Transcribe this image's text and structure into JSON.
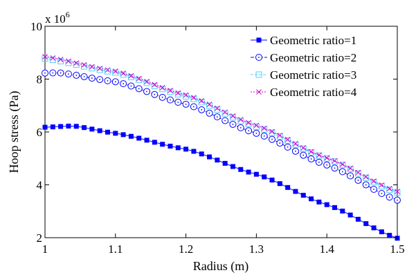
{
  "chart_data": {
    "type": "line",
    "title": "",
    "xlabel": "Radius (m)",
    "ylabel": "Hoop stress (Pa)",
    "y_multiplier_label": "x 10",
    "y_multiplier_exp": "6",
    "xlim": [
      1.0,
      1.5
    ],
    "ylim": [
      2,
      10
    ],
    "x_ticks": [
      1,
      1.1,
      1.2,
      1.3,
      1.4,
      1.5
    ],
    "x_tick_labels": [
      "1",
      "1.1",
      "1.2",
      "1.3",
      "1.4",
      "1.5"
    ],
    "y_ticks": [
      2,
      4,
      6,
      8,
      10
    ],
    "y_tick_labels": [
      "2",
      "4",
      "6",
      "8",
      "10"
    ],
    "grid": false,
    "legend_position": "top-right",
    "x_sampling": {
      "start": 1.0,
      "end": 1.5,
      "count": 46
    },
    "series": [
      {
        "name": "Geometric ratio=1",
        "color": "#0000ff",
        "marker": "square-filled",
        "key_points": [
          [
            1.0,
            6.18
          ],
          [
            1.04,
            6.23
          ],
          [
            1.1,
            5.95
          ],
          [
            1.2,
            5.35
          ],
          [
            1.3,
            4.4
          ],
          [
            1.4,
            3.25
          ],
          [
            1.5,
            1.98
          ]
        ]
      },
      {
        "name": "Geometric ratio=2",
        "color": "#0000ff",
        "marker": "circle-dot",
        "key_points": [
          [
            1.0,
            8.23
          ],
          [
            1.02,
            8.24
          ],
          [
            1.1,
            7.9
          ],
          [
            1.2,
            7.05
          ],
          [
            1.3,
            5.95
          ],
          [
            1.4,
            4.75
          ],
          [
            1.5,
            3.42
          ]
        ]
      },
      {
        "name": "Geometric ratio=3",
        "color": "#55ccff",
        "marker": "square-open",
        "key_points": [
          [
            1.0,
            8.78
          ],
          [
            1.1,
            8.25
          ],
          [
            1.2,
            7.35
          ],
          [
            1.3,
            6.2
          ],
          [
            1.4,
            5.0
          ],
          [
            1.5,
            3.7
          ]
        ]
      },
      {
        "name": "Geometric ratio=4",
        "color": "#cc00cc",
        "marker": "x",
        "key_points": [
          [
            1.0,
            8.85
          ],
          [
            1.1,
            8.3
          ],
          [
            1.2,
            7.4
          ],
          [
            1.3,
            6.25
          ],
          [
            1.4,
            5.02
          ],
          [
            1.5,
            3.75
          ]
        ]
      }
    ]
  }
}
